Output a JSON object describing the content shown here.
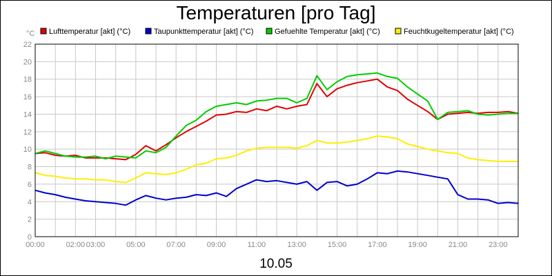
{
  "chart_data": {
    "type": "line",
    "title": "Temperaturen [pro Tag]",
    "unit_label": "°C",
    "date_label": "10.05",
    "x_range": [
      0,
      24
    ],
    "ylim": [
      0,
      22
    ],
    "grid": true,
    "legend_placement": "top",
    "y_ticks": [
      0,
      2,
      4,
      6,
      8,
      10,
      12,
      14,
      16,
      18,
      20,
      22
    ],
    "x_ticks": [
      {
        "h": 0,
        "label": "00:00"
      },
      {
        "h": 2,
        "label": "02:00"
      },
      {
        "h": 3,
        "label": "03:00"
      },
      {
        "h": 5,
        "label": "05:00"
      },
      {
        "h": 7,
        "label": "07:00"
      },
      {
        "h": 9,
        "label": "09:00"
      },
      {
        "h": 11,
        "label": "11:00"
      },
      {
        "h": 13,
        "label": "13:00"
      },
      {
        "h": 15,
        "label": "15:00"
      },
      {
        "h": 17,
        "label": "17:00"
      },
      {
        "h": 19,
        "label": "19:00"
      },
      {
        "h": 21,
        "label": "21:00"
      },
      {
        "h": 23,
        "label": "23:00"
      }
    ],
    "series": [
      {
        "name": "Lufttemperatur [akt] (°C)",
        "color": "#e00000",
        "points": [
          [
            0,
            9.5
          ],
          [
            0.5,
            9.6
          ],
          [
            1,
            9.3
          ],
          [
            1.5,
            9.2
          ],
          [
            2,
            9.3
          ],
          [
            2.5,
            9.0
          ],
          [
            3,
            9.0
          ],
          [
            3.5,
            9.0
          ],
          [
            4,
            8.9
          ],
          [
            4.5,
            8.8
          ],
          [
            5,
            9.4
          ],
          [
            5.5,
            10.4
          ],
          [
            6,
            9.8
          ],
          [
            6.5,
            10.5
          ],
          [
            7,
            11.3
          ],
          [
            7.5,
            12.0
          ],
          [
            8,
            12.6
          ],
          [
            8.5,
            13.2
          ],
          [
            9,
            13.9
          ],
          [
            9.5,
            14.0
          ],
          [
            10,
            14.3
          ],
          [
            10.5,
            14.2
          ],
          [
            11,
            14.6
          ],
          [
            11.5,
            14.4
          ],
          [
            12,
            14.9
          ],
          [
            12.5,
            14.6
          ],
          [
            13,
            14.9
          ],
          [
            13.5,
            15.1
          ],
          [
            14,
            17.5
          ],
          [
            14.5,
            16.0
          ],
          [
            15,
            16.9
          ],
          [
            15.5,
            17.3
          ],
          [
            16,
            17.6
          ],
          [
            16.5,
            17.8
          ],
          [
            17,
            18.0
          ],
          [
            17.5,
            17.1
          ],
          [
            18,
            16.7
          ],
          [
            18.5,
            15.7
          ],
          [
            19,
            15.0
          ],
          [
            19.5,
            14.3
          ],
          [
            20,
            13.4
          ],
          [
            20.5,
            14.0
          ],
          [
            21,
            14.1
          ],
          [
            21.5,
            14.2
          ],
          [
            22,
            14.1
          ],
          [
            22.5,
            14.2
          ],
          [
            23,
            14.2
          ],
          [
            23.5,
            14.3
          ],
          [
            24,
            14.1
          ]
        ]
      },
      {
        "name": "Taupunkttemperatur [akt] (°C)",
        "color": "#0000cc",
        "points": [
          [
            0,
            5.3
          ],
          [
            0.5,
            5.0
          ],
          [
            1,
            4.8
          ],
          [
            1.5,
            4.5
          ],
          [
            2,
            4.3
          ],
          [
            2.5,
            4.1
          ],
          [
            3,
            4.0
          ],
          [
            3.5,
            3.9
          ],
          [
            4,
            3.8
          ],
          [
            4.5,
            3.6
          ],
          [
            5,
            4.2
          ],
          [
            5.5,
            4.7
          ],
          [
            6,
            4.4
          ],
          [
            6.5,
            4.2
          ],
          [
            7,
            4.4
          ],
          [
            7.5,
            4.5
          ],
          [
            8,
            4.8
          ],
          [
            8.5,
            4.7
          ],
          [
            9,
            5.0
          ],
          [
            9.5,
            4.6
          ],
          [
            10,
            5.5
          ],
          [
            10.5,
            6.0
          ],
          [
            11,
            6.5
          ],
          [
            11.5,
            6.3
          ],
          [
            12,
            6.4
          ],
          [
            12.5,
            6.2
          ],
          [
            13,
            6.0
          ],
          [
            13.5,
            6.3
          ],
          [
            14,
            5.3
          ],
          [
            14.5,
            6.2
          ],
          [
            15,
            6.3
          ],
          [
            15.5,
            5.8
          ],
          [
            16,
            6.0
          ],
          [
            16.5,
            6.6
          ],
          [
            17,
            7.3
          ],
          [
            17.5,
            7.2
          ],
          [
            18,
            7.5
          ],
          [
            18.5,
            7.4
          ],
          [
            19,
            7.2
          ],
          [
            19.5,
            7.0
          ],
          [
            20,
            6.8
          ],
          [
            20.5,
            6.6
          ],
          [
            21,
            4.8
          ],
          [
            21.5,
            4.3
          ],
          [
            22,
            4.3
          ],
          [
            22.5,
            4.2
          ],
          [
            23,
            3.8
          ],
          [
            23.5,
            3.9
          ],
          [
            24,
            3.8
          ]
        ]
      },
      {
        "name": "Gefuehlte Temperatur [akt] (°C)",
        "color": "#00cc00",
        "points": [
          [
            0,
            9.5
          ],
          [
            0.5,
            9.8
          ],
          [
            1,
            9.5
          ],
          [
            1.5,
            9.2
          ],
          [
            2,
            9.1
          ],
          [
            2.5,
            9.1
          ],
          [
            3,
            9.2
          ],
          [
            3.5,
            8.9
          ],
          [
            4,
            9.2
          ],
          [
            4.5,
            9.1
          ],
          [
            5,
            9.0
          ],
          [
            5.5,
            9.8
          ],
          [
            6,
            9.6
          ],
          [
            6.5,
            10.2
          ],
          [
            7,
            11.5
          ],
          [
            7.5,
            12.7
          ],
          [
            8,
            13.3
          ],
          [
            8.5,
            14.3
          ],
          [
            9,
            14.9
          ],
          [
            9.5,
            15.1
          ],
          [
            10,
            15.3
          ],
          [
            10.5,
            15.1
          ],
          [
            11,
            15.5
          ],
          [
            11.5,
            15.6
          ],
          [
            12,
            15.8
          ],
          [
            12.5,
            15.8
          ],
          [
            13,
            15.3
          ],
          [
            13.5,
            15.8
          ],
          [
            14,
            18.4
          ],
          [
            14.5,
            16.8
          ],
          [
            15,
            17.7
          ],
          [
            15.5,
            18.3
          ],
          [
            16,
            18.5
          ],
          [
            16.5,
            18.6
          ],
          [
            17,
            18.7
          ],
          [
            17.5,
            18.3
          ],
          [
            18,
            18.1
          ],
          [
            18.5,
            17.1
          ],
          [
            19,
            16.3
          ],
          [
            19.5,
            15.5
          ],
          [
            20,
            13.4
          ],
          [
            20.5,
            14.2
          ],
          [
            21,
            14.3
          ],
          [
            21.5,
            14.4
          ],
          [
            22,
            14.0
          ],
          [
            22.5,
            13.9
          ],
          [
            23,
            14.0
          ],
          [
            23.5,
            14.1
          ],
          [
            24,
            14.1
          ]
        ]
      },
      {
        "name": "Feuchtkugeltemperatur [akt] (°C)",
        "color": "#ffee00",
        "points": [
          [
            0,
            7.3
          ],
          [
            0.5,
            7.0
          ],
          [
            1,
            6.9
          ],
          [
            1.5,
            6.7
          ],
          [
            2,
            6.6
          ],
          [
            2.5,
            6.6
          ],
          [
            3,
            6.5
          ],
          [
            3.5,
            6.5
          ],
          [
            4,
            6.3
          ],
          [
            4.5,
            6.2
          ],
          [
            5,
            6.7
          ],
          [
            5.5,
            7.3
          ],
          [
            6,
            7.2
          ],
          [
            6.5,
            7.1
          ],
          [
            7,
            7.3
          ],
          [
            7.5,
            7.7
          ],
          [
            8,
            8.2
          ],
          [
            8.5,
            8.4
          ],
          [
            9,
            8.9
          ],
          [
            9.5,
            9.0
          ],
          [
            10,
            9.3
          ],
          [
            10.5,
            9.8
          ],
          [
            11,
            10.1
          ],
          [
            11.5,
            10.2
          ],
          [
            12,
            10.2
          ],
          [
            12.5,
            10.2
          ],
          [
            13,
            10.1
          ],
          [
            13.5,
            10.4
          ],
          [
            14,
            11.0
          ],
          [
            14.5,
            10.7
          ],
          [
            15,
            10.7
          ],
          [
            15.5,
            10.8
          ],
          [
            16,
            11.0
          ],
          [
            16.5,
            11.2
          ],
          [
            17,
            11.5
          ],
          [
            17.5,
            11.4
          ],
          [
            18,
            11.2
          ],
          [
            18.5,
            10.6
          ],
          [
            19,
            10.3
          ],
          [
            19.5,
            10.0
          ],
          [
            20,
            9.8
          ],
          [
            20.5,
            9.6
          ],
          [
            21,
            9.5
          ],
          [
            21.5,
            9.0
          ],
          [
            22,
            8.8
          ],
          [
            22.5,
            8.7
          ],
          [
            23,
            8.6
          ],
          [
            23.5,
            8.6
          ],
          [
            24,
            8.6
          ]
        ]
      }
    ]
  }
}
